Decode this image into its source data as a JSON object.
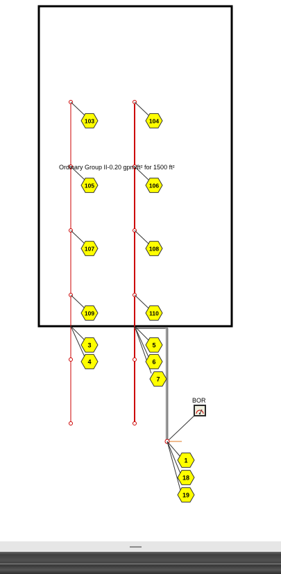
{
  "room_label": "Ordinary Group II-0.20 gpm/ft² for 1500 ft²",
  "riser_label": "BOR",
  "sprinklers": [
    "103",
    "104",
    "105",
    "106",
    "107",
    "108",
    "109",
    "110",
    "3",
    "4",
    "5",
    "6",
    "7",
    "1",
    "18",
    "19"
  ],
  "colors": {
    "pipe": "#cc0000",
    "tag_fill": "#ffff00",
    "tag_stroke": "#333333",
    "wall": "#000000",
    "riser_pipe": "#888888"
  },
  "icons": {
    "riser": "gauge-icon",
    "grip": "grip-handle-icon"
  }
}
